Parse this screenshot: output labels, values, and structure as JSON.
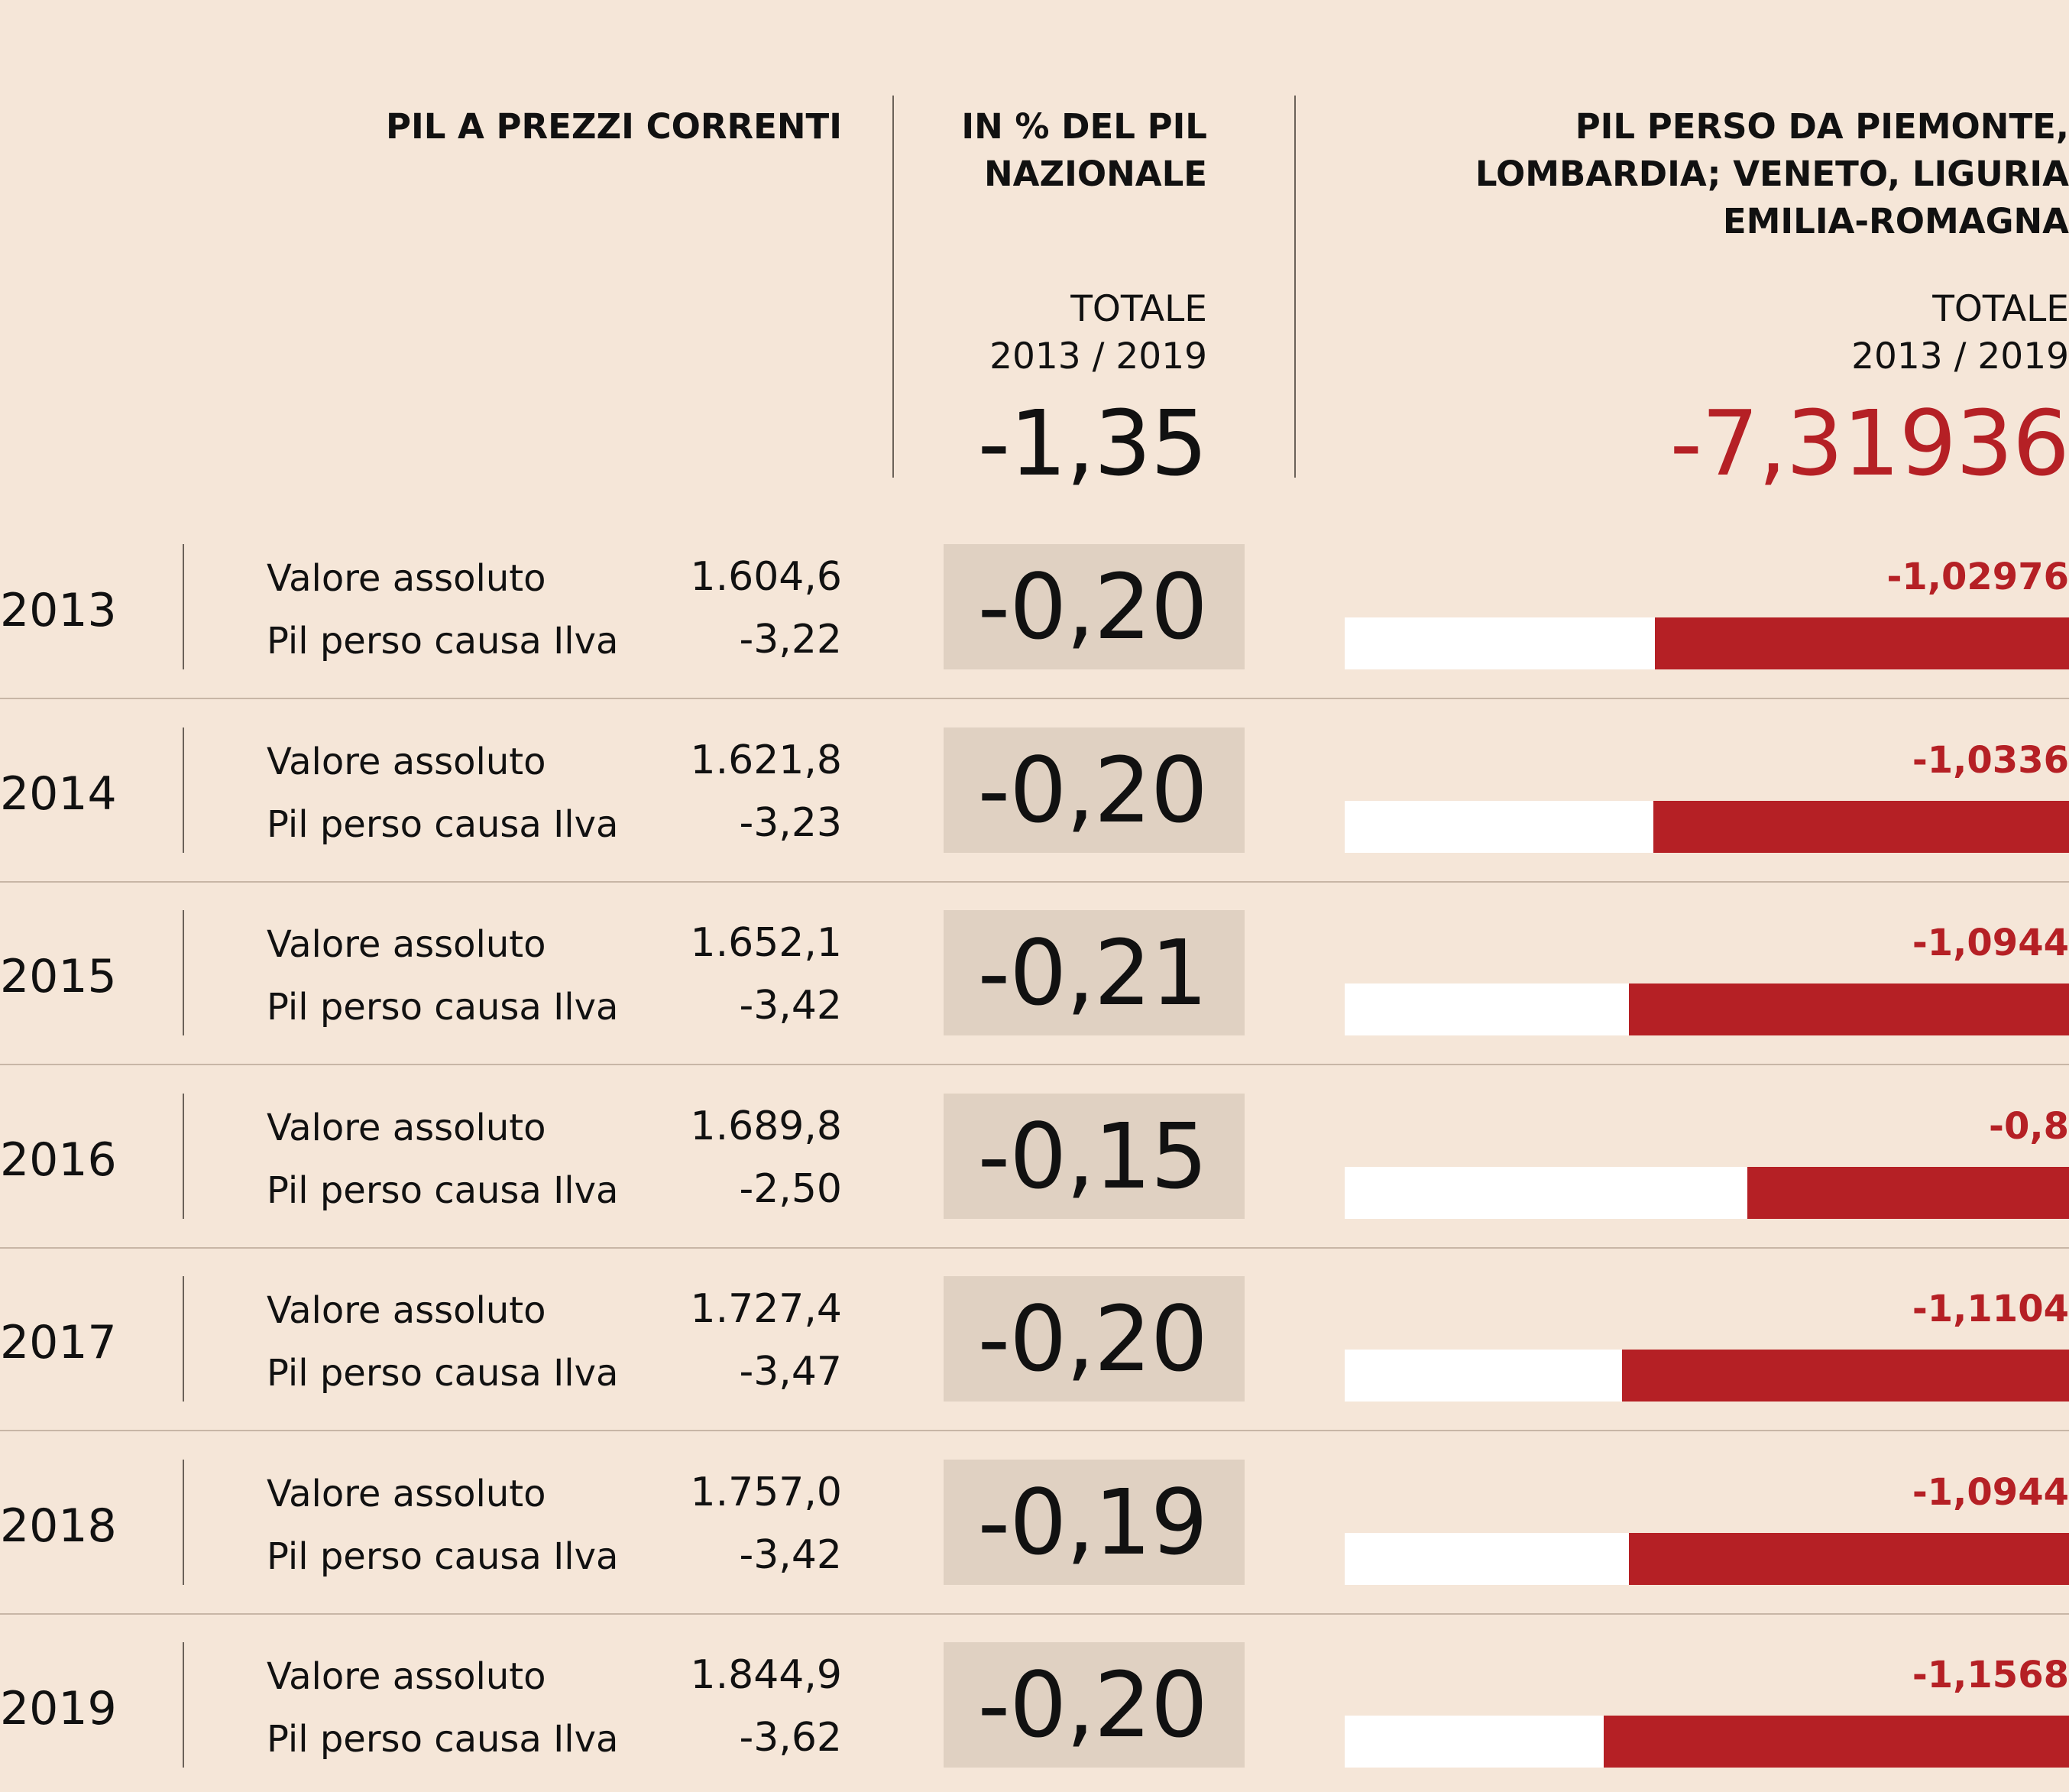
{
  "colors": {
    "background": "#f5e6d8",
    "accent": "#b52025",
    "box": "#e0d1c2",
    "bar_track": "#ffffff",
    "text": "#111111"
  },
  "header": {
    "col1": "PIL A PREZZI CORRENTI",
    "col2_line1": "IN % DEL PIL",
    "col2_line2": "NAZIONALE",
    "col2_total_line1": "TOTALE",
    "col2_total_line2": "2013 / 2019",
    "col2_total_value": "-1,35",
    "col3_line1": "PIL PERSO DA PIEMONTE,",
    "col3_line2": "LOMBARDIA; VENETO, LIGURIA",
    "col3_line3": "EMILIA-ROMAGNA",
    "col3_total_line1": "TOTALE",
    "col3_total_line2": "2013 / 2019",
    "col3_total_value": "-7,31936"
  },
  "chart_data": {
    "type": "table",
    "title": "PIL perso causa Ilva",
    "bar_axis_max": 1.8,
    "rows": [
      {
        "year": "2013",
        "label_abs": "Valore assoluto",
        "label_lost": "Pil perso causa Ilva",
        "abs": "1.604,6",
        "lost": "-3,22",
        "pct": "-0,20",
        "north_label": "-1,02976",
        "north_value": 1.02976
      },
      {
        "year": "2014",
        "label_abs": "Valore assoluto",
        "label_lost": "Pil perso causa Ilva",
        "abs": "1.621,8",
        "lost": "-3,23",
        "pct": "-0,20",
        "north_label": "-1,0336",
        "north_value": 1.0336
      },
      {
        "year": "2015",
        "label_abs": "Valore assoluto",
        "label_lost": "Pil perso causa Ilva",
        "abs": "1.652,1",
        "lost": "-3,42",
        "pct": "-0,21",
        "north_label": "-1,0944",
        "north_value": 1.0944
      },
      {
        "year": "2016",
        "label_abs": "Valore assoluto",
        "label_lost": "Pil perso causa Ilva",
        "abs": "1.689,8",
        "lost": "-2,50",
        "pct": "-0,15",
        "north_label": "-0,8",
        "north_value": 0.8
      },
      {
        "year": "2017",
        "label_abs": "Valore assoluto",
        "label_lost": "Pil perso causa Ilva",
        "abs": "1.727,4",
        "lost": "-3,47",
        "pct": "-0,20",
        "north_label": "-1,1104",
        "north_value": 1.1104
      },
      {
        "year": "2018",
        "label_abs": "Valore assoluto",
        "label_lost": "Pil perso causa Ilva",
        "abs": "1.757,0",
        "lost": "-3,42",
        "pct": "-0,19",
        "north_label": "-1,0944",
        "north_value": 1.0944
      },
      {
        "year": "2019",
        "label_abs": "Valore assoluto",
        "label_lost": "Pil perso causa Ilva",
        "abs": "1.844,9",
        "lost": "-3,62",
        "pct": "-0,20",
        "north_label": "-1,1568",
        "north_value": 1.1568
      }
    ]
  }
}
